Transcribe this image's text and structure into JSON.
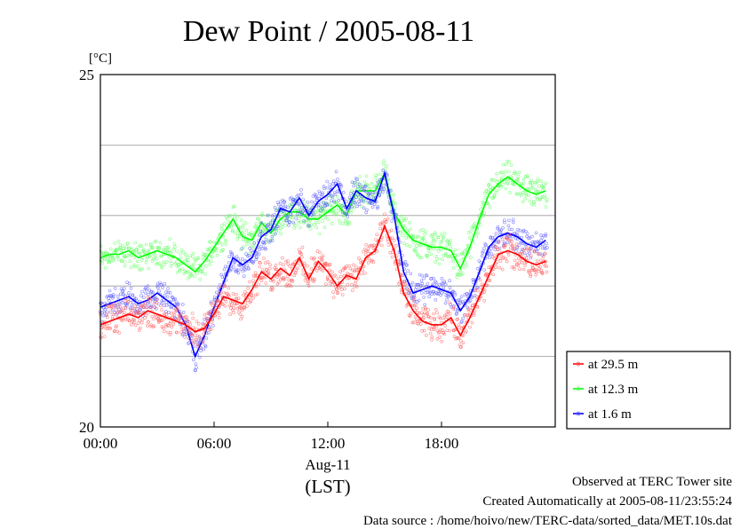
{
  "chart_data": {
    "type": "line",
    "title": "Dew Point / 2005-08-11",
    "y_unit": "[°C]",
    "ylim": [
      20,
      25
    ],
    "y_ticks": [
      "20",
      "25"
    ],
    "y_gridlines": [
      21,
      22,
      23,
      24
    ],
    "xlim": [
      0,
      24
    ],
    "x_ticks": [
      {
        "value": 0,
        "label": "00:00"
      },
      {
        "value": 6,
        "label": "06:00"
      },
      {
        "value": 12,
        "label": "12:00"
      },
      {
        "value": 18,
        "label": "18:00"
      }
    ],
    "x_date_label": "Aug-11",
    "xlabel": "(LST)",
    "legend_position": "right",
    "series": [
      {
        "name": "at 29.5 m",
        "color": "#ff0000",
        "marker_color": "#ff6060",
        "x": [
          0,
          0.5,
          1,
          1.5,
          2,
          2.5,
          3,
          3.5,
          4,
          4.5,
          5,
          5.5,
          6,
          6.5,
          7,
          7.5,
          8,
          8.5,
          9,
          9.5,
          10,
          10.5,
          11,
          11.5,
          12,
          12.5,
          13,
          13.5,
          14,
          14.5,
          15,
          15.5,
          16,
          16.5,
          17,
          17.5,
          18,
          18.5,
          19,
          19.5,
          20,
          20.5,
          21,
          21.5,
          22,
          22.5,
          23,
          23.5
        ],
        "values": [
          21.45,
          21.5,
          21.55,
          21.6,
          21.55,
          21.65,
          21.6,
          21.55,
          21.5,
          21.45,
          21.35,
          21.4,
          21.6,
          21.85,
          21.8,
          21.75,
          21.95,
          22.2,
          22.1,
          22.25,
          22.15,
          22.4,
          22.1,
          22.35,
          22.2,
          22.0,
          22.15,
          22.1,
          22.4,
          22.5,
          22.85,
          22.5,
          21.9,
          21.65,
          21.5,
          21.45,
          21.45,
          21.55,
          21.3,
          21.55,
          21.85,
          22.15,
          22.45,
          22.5,
          22.45,
          22.35,
          22.3,
          22.35
        ]
      },
      {
        "name": "at 12.3 m",
        "color": "#00ff00",
        "marker_color": "#60ff60",
        "x": [
          0,
          0.5,
          1,
          1.5,
          2,
          2.5,
          3,
          3.5,
          4,
          4.5,
          5,
          5.5,
          6,
          6.5,
          7,
          7.5,
          8,
          8.5,
          9,
          9.5,
          10,
          10.5,
          11,
          11.5,
          12,
          12.5,
          13,
          13.5,
          14,
          14.5,
          15,
          15.5,
          16,
          16.5,
          17,
          17.5,
          18,
          18.5,
          19,
          19.5,
          20,
          20.5,
          21,
          21.5,
          22,
          22.5,
          23,
          23.5
        ],
        "values": [
          22.4,
          22.45,
          22.45,
          22.5,
          22.4,
          22.45,
          22.5,
          22.45,
          22.4,
          22.3,
          22.2,
          22.35,
          22.55,
          22.75,
          22.95,
          22.7,
          22.65,
          22.9,
          22.75,
          22.95,
          23.05,
          23.05,
          22.95,
          22.95,
          23.05,
          23.15,
          23.0,
          23.35,
          23.35,
          23.35,
          23.6,
          23.05,
          22.8,
          22.65,
          22.6,
          22.55,
          22.55,
          22.5,
          22.25,
          22.55,
          22.95,
          23.3,
          23.45,
          23.55,
          23.45,
          23.35,
          23.3,
          23.35
        ]
      },
      {
        "name": "at 1.6 m",
        "color": "#0000ff",
        "marker_color": "#6060ff",
        "x": [
          0,
          0.5,
          1,
          1.5,
          2,
          2.5,
          3,
          3.5,
          4,
          4.5,
          5,
          5.5,
          6,
          6.5,
          7,
          7.5,
          8,
          8.5,
          9,
          9.5,
          10,
          10.5,
          11,
          11.5,
          12,
          12.5,
          13,
          13.5,
          14,
          14.5,
          15,
          15.5,
          16,
          16.5,
          17,
          17.5,
          18,
          18.5,
          19,
          19.5,
          20,
          20.5,
          21,
          21.5,
          22,
          22.5,
          23,
          23.5
        ],
        "values": [
          21.7,
          21.75,
          21.8,
          21.85,
          21.75,
          21.8,
          21.9,
          21.8,
          21.7,
          21.45,
          21.0,
          21.3,
          21.7,
          22.05,
          22.4,
          22.3,
          22.4,
          22.7,
          22.8,
          23.1,
          23.05,
          23.25,
          23.0,
          23.2,
          23.3,
          23.45,
          23.1,
          23.35,
          23.25,
          23.2,
          23.6,
          23.0,
          22.2,
          21.9,
          21.95,
          22.0,
          21.95,
          21.9,
          21.65,
          21.85,
          22.2,
          22.55,
          22.7,
          22.75,
          22.7,
          22.6,
          22.55,
          22.65
        ]
      }
    ]
  },
  "footer": {
    "line1": "Observed at TERC Tower site",
    "line2": "Created Automatically at 2005-08-11/23:55:24",
    "line3": "Data source : /home/hoivo/new/TERC-data/sorted_data/MET.10s.dat"
  }
}
